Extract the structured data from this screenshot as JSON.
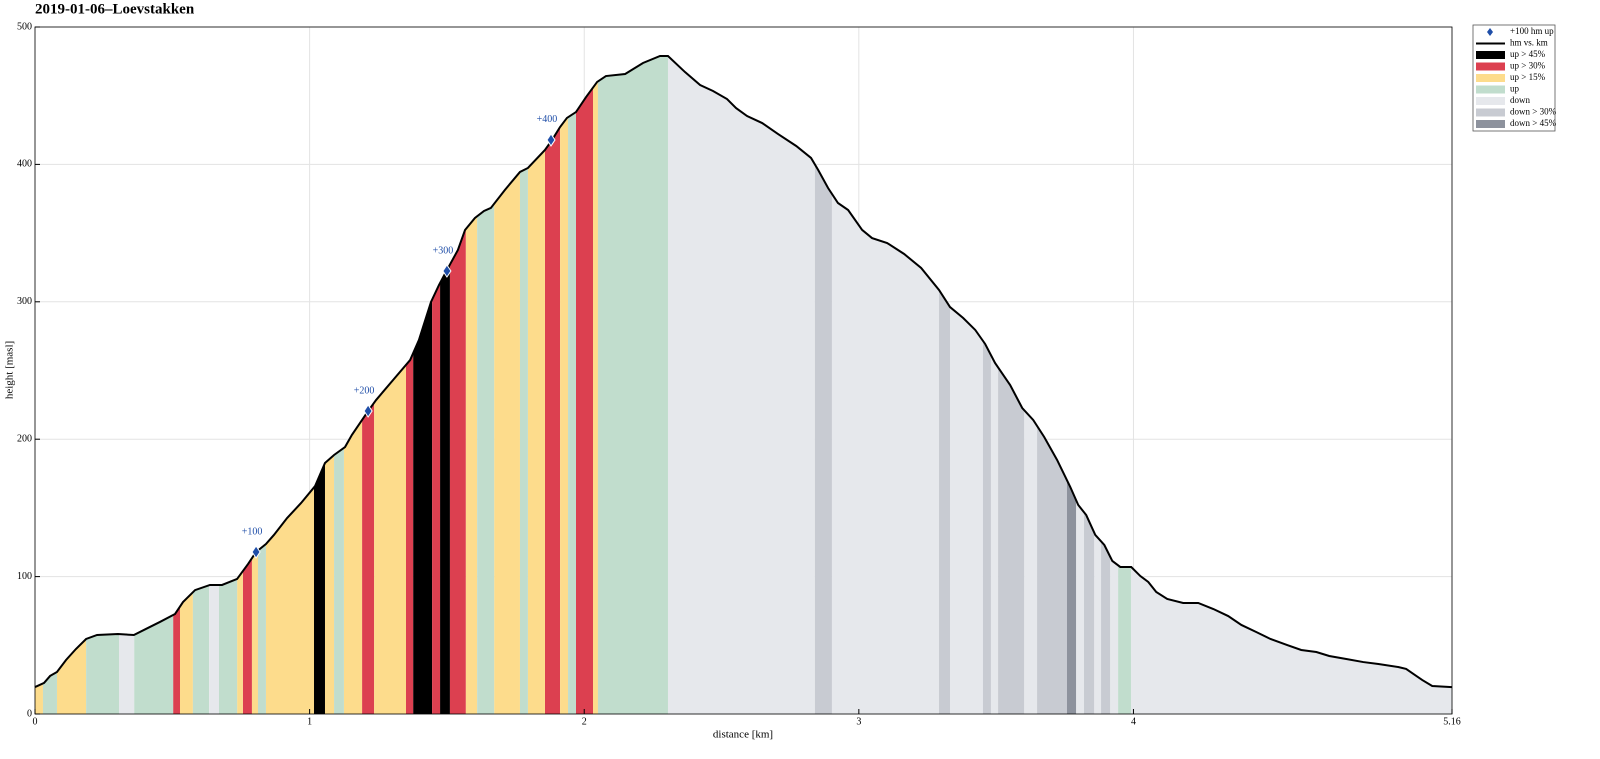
{
  "chart_data": {
    "type": "profile",
    "title": "2019-01-06–Loevstakken",
    "xlabel": "distance [km]",
    "ylabel": "height [masl]",
    "xlim": [
      0,
      5.16
    ],
    "ylim": [
      0,
      500
    ],
    "xticks": [
      0,
      1,
      2,
      3,
      4,
      5.16
    ],
    "yticks": [
      0,
      100,
      200,
      300,
      400,
      500
    ],
    "grid": true,
    "legend": "upper right",
    "series": [
      {
        "name": "+100 hm up",
        "color": "#1f4ea8",
        "x": [
          0.805,
          1.213,
          1.5,
          1.879
        ],
        "values": [
          117.9,
          220.5,
          322.4,
          417.8
        ],
        "labels": [
          "+100",
          "+200",
          "+300",
          "+400"
        ]
      },
      {
        "name": "hm vs. km",
        "color": "#000000",
        "x": [
          0,
          0.033,
          0.055,
          0.08,
          0.113,
          0.149,
          0.186,
          0.226,
          0.302,
          0.36,
          0.404,
          0.455,
          0.51,
          0.539,
          0.583,
          0.637,
          0.681,
          0.736,
          0.776,
          0.805,
          0.841,
          0.87,
          0.918,
          0.969,
          1.02,
          1.056,
          1.089,
          1.129,
          1.154,
          1.213,
          1.242,
          1.304,
          1.366,
          1.398,
          1.442,
          1.471,
          1.5,
          1.54,
          1.566,
          1.602,
          1.635,
          1.66,
          1.711,
          1.766,
          1.795,
          1.857,
          1.883,
          1.912,
          1.937,
          1.97,
          2.007,
          2.047,
          2.079,
          2.149,
          2.214,
          2.276,
          2.305,
          2.367,
          2.422,
          2.469,
          2.52,
          2.553,
          2.593,
          2.648,
          2.706,
          2.772,
          2.826,
          2.852,
          2.888,
          2.924,
          2.961,
          3.012,
          3.048,
          3.103,
          3.165,
          3.227,
          3.292,
          3.332,
          3.38,
          3.424,
          3.46,
          3.496,
          3.551,
          3.595,
          3.635,
          3.675,
          3.722,
          3.77,
          3.799,
          3.828,
          3.861,
          3.894,
          3.923,
          3.952,
          3.992,
          4.025,
          4.054,
          4.083,
          4.123,
          4.181,
          4.236,
          4.291,
          4.345,
          4.393,
          4.447,
          4.499,
          4.56,
          4.611,
          4.666,
          4.713,
          4.775,
          4.837,
          4.892,
          4.964,
          4.993,
          5.03,
          5.052,
          5.088,
          5.16
        ],
        "values": [
          19.6,
          22.6,
          27.7,
          30.6,
          39.3,
          47.3,
          54.6,
          57.5,
          58.2,
          57.5,
          61.9,
          67,
          72.8,
          81.5,
          90.2,
          93.9,
          93.9,
          98.3,
          109.2,
          117.9,
          123.7,
          130.3,
          142.6,
          153.6,
          165.9,
          182.7,
          188.5,
          194.3,
          203.1,
          220.5,
          228.5,
          243.1,
          257.6,
          272.2,
          299.9,
          312.2,
          323.1,
          337.7,
          352.3,
          361,
          366.1,
          368.3,
          381.4,
          394.5,
          397.4,
          410.5,
          417.8,
          427.2,
          433.8,
          438.1,
          449.1,
          460,
          464.3,
          465.8,
          473.8,
          478.9,
          478.9,
          467.2,
          457.8,
          453.4,
          447.6,
          441,
          435.2,
          430.1,
          422.1,
          413.4,
          404.7,
          395.9,
          382.8,
          371.9,
          366.8,
          352.3,
          346.4,
          342.8,
          334.8,
          324.6,
          308.6,
          296.2,
          288.2,
          279.5,
          269.3,
          255.5,
          239.4,
          222.7,
          214,
          201.6,
          184.9,
          165.2,
          152.1,
          144.8,
          130.3,
          123,
          111.4,
          107,
          107,
          100.4,
          96.1,
          88.8,
          83.7,
          80.8,
          80.8,
          76.4,
          71.3,
          64.8,
          59.7,
          54.6,
          50.2,
          46.6,
          45.1,
          42.2,
          40,
          37.8,
          36.4,
          34.2,
          32.8,
          27.7,
          24.7,
          20.4,
          19.6
        ]
      },
      {
        "name": "up > 45%",
        "color": "#000000",
        "ranges": [
          [
            1.016,
            1.056
          ],
          [
            1.377,
            1.446
          ],
          [
            1.475,
            1.511
          ]
        ]
      },
      {
        "name": "up > 30%",
        "color": "#dc4050",
        "ranges": [
          [
            0.503,
            0.528
          ],
          [
            0.757,
            0.79
          ],
          [
            1.191,
            1.235
          ],
          [
            1.351,
            1.377
          ],
          [
            1.446,
            1.475
          ],
          [
            1.511,
            1.569
          ],
          [
            1.857,
            1.912
          ],
          [
            1.97,
            2.032
          ]
        ]
      },
      {
        "name": "up > 15%",
        "color": "#fddc8c",
        "ranges": [
          [
            0,
            0.029
          ],
          [
            0.08,
            0.186
          ],
          [
            0.528,
            0.575
          ],
          [
            0.736,
            0.757
          ],
          [
            0.79,
            0.812
          ],
          [
            0.841,
            1.016
          ],
          [
            1.056,
            1.089
          ],
          [
            1.125,
            1.191
          ],
          [
            1.235,
            1.351
          ],
          [
            1.569,
            1.61
          ],
          [
            1.672,
            1.766
          ],
          [
            1.795,
            1.857
          ],
          [
            1.912,
            1.941
          ],
          [
            2.032,
            2.05
          ]
        ]
      },
      {
        "name": "up",
        "color": "#c1ddcd",
        "ranges": [
          [
            0.029,
            0.08
          ],
          [
            0.186,
            0.306
          ],
          [
            0.361,
            0.503
          ],
          [
            0.575,
            0.634
          ],
          [
            0.67,
            0.736
          ],
          [
            0.812,
            0.841
          ],
          [
            1.089,
            1.125
          ],
          [
            1.61,
            1.672
          ],
          [
            1.766,
            1.795
          ],
          [
            1.941,
            1.97
          ],
          [
            2.05,
            2.305
          ],
          [
            3.944,
            3.991
          ]
        ]
      },
      {
        "name": "down",
        "color": "#e6e8ec",
        "ranges": [
          [
            0.306,
            0.361
          ],
          [
            0.634,
            0.67
          ],
          [
            2.305,
            2.84
          ],
          [
            2.902,
            3.292
          ],
          [
            3.332,
            3.452
          ],
          [
            3.481,
            3.507
          ],
          [
            3.602,
            3.649
          ],
          [
            3.791,
            3.82
          ],
          [
            3.857,
            3.882
          ],
          [
            3.915,
            3.944
          ],
          [
            3.991,
            5.16
          ]
        ]
      },
      {
        "name": "down > 30%",
        "color": "#c8cbd2",
        "ranges": [
          [
            2.84,
            2.902
          ],
          [
            3.292,
            3.332
          ],
          [
            3.452,
            3.481
          ],
          [
            3.507,
            3.602
          ],
          [
            3.649,
            3.758
          ],
          [
            3.82,
            3.857
          ],
          [
            3.882,
            3.915
          ]
        ]
      },
      {
        "name": "down > 45%",
        "color": "#8d929d",
        "ranges": [
          [
            3.758,
            3.791
          ]
        ]
      }
    ]
  }
}
